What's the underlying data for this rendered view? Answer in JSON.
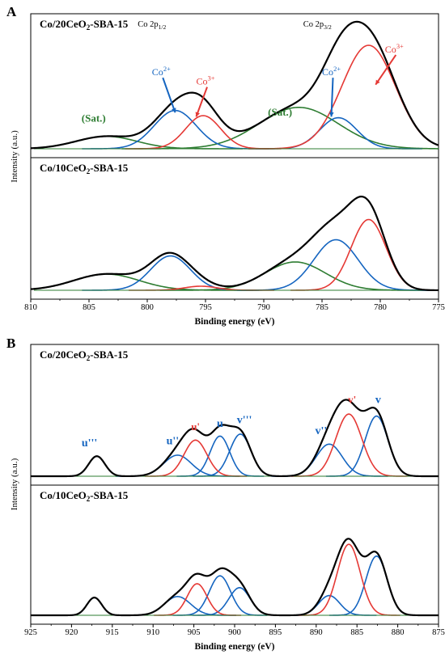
{
  "chart_data": [
    {
      "type": "line",
      "panel_label": "A",
      "xlabel": "Binding energy (eV)",
      "ylabel": "Intensity (a.u.)",
      "xlim": [
        810,
        775
      ],
      "x_ticks": [
        810,
        805,
        800,
        795,
        790,
        785,
        780,
        775
      ],
      "x_reversed": true,
      "subplots": [
        {
          "title": "Co/20CeO2-SBA-15",
          "title_parts": [
            {
              "t": "Co/20CeO",
              "sub": false
            },
            {
              "t": "2",
              "sub": true
            },
            {
              "t": "-SBA-15",
              "sub": false
            }
          ],
          "components": [
            {
              "color": "#2e7d32",
              "peaks": [
                [
                  803.5,
                  0.12,
                  2.6
                ],
                [
                  787.0,
                  0.4,
                  3.4
                ]
              ]
            },
            {
              "color": "#1565c0",
              "peaks": [
                [
                  797.6,
                  0.37,
                  1.8
                ],
                [
                  783.6,
                  0.3,
                  1.6
                ]
              ]
            },
            {
              "color": "#e53935",
              "peaks": [
                [
                  795.2,
                  0.32,
                  1.5
                ],
                [
                  781.0,
                  1.0,
                  2.3
                ]
              ]
            }
          ],
          "annotations": [
            {
              "label": "(Sat.)",
              "kind": "sat",
              "x": 804.6,
              "y": 0.26
            },
            {
              "label": "Co",
              "sup": "2+",
              "kind": "co2",
              "x": 798.8,
              "y": 0.71,
              "arrow_to": [
                797.6,
                0.35
              ]
            },
            {
              "label": "Co",
              "sup": "3+",
              "kind": "co3",
              "x": 795.0,
              "y": 0.62,
              "arrow_to": [
                795.8,
                0.31
              ]
            },
            {
              "label": "(Sat.)",
              "kind": "sat",
              "x": 788.6,
              "y": 0.32
            },
            {
              "label": "Co",
              "sup": "2+",
              "kind": "co2",
              "x": 784.2,
              "y": 0.71,
              "arrow_to": [
                784.2,
                0.31
              ]
            },
            {
              "label": "Co",
              "sup": "3+",
              "kind": "co3",
              "x": 778.8,
              "y": 0.93,
              "arrow_to": [
                780.4,
                0.62
              ]
            },
            {
              "label": "Co 2p",
              "sub": "1/2",
              "kind": "orbit",
              "x": 799.6,
              "y": 1.18
            },
            {
              "label": "Co 2p",
              "sub": "3/2",
              "kind": "orbit",
              "x": 785.4,
              "y": 1.18
            }
          ]
        },
        {
          "title": "Co/10CeO2-SBA-15",
          "title_parts": [
            {
              "t": "Co/10CeO",
              "sub": false
            },
            {
              "t": "2",
              "sub": true
            },
            {
              "t": "-SBA-15",
              "sub": false
            }
          ],
          "components": [
            {
              "color": "#2e7d32",
              "peaks": [
                [
                  803.5,
                  0.16,
                  2.8
                ],
                [
                  787.3,
                  0.28,
                  2.6
                ]
              ]
            },
            {
              "color": "#1565c0",
              "peaks": [
                [
                  798.0,
                  0.34,
                  1.7
                ],
                [
                  783.8,
                  0.5,
                  1.9
                ]
              ]
            },
            {
              "color": "#e53935",
              "peaks": [
                [
                  795.4,
                  0.04,
                  1.4
                ],
                [
                  781.0,
                  0.7,
                  1.5
                ]
              ]
            }
          ],
          "annotations": []
        }
      ]
    },
    {
      "type": "line",
      "panel_label": "B",
      "xlabel": "Binding energy (eV)",
      "ylabel": "Intensity (a.u.)",
      "xlim": [
        925,
        875
      ],
      "x_ticks": [
        925,
        920,
        915,
        910,
        905,
        900,
        895,
        890,
        885,
        880,
        875
      ],
      "x_reversed": true,
      "subplots": [
        {
          "title": "Co/20CeO2-SBA-15",
          "title_parts": [
            {
              "t": "Co/20CeO",
              "sub": false
            },
            {
              "t": "2",
              "sub": true
            },
            {
              "t": "-SBA-15",
              "sub": false
            }
          ],
          "components": [
            {
              "color": "#1565c0",
              "peaks": [
                [
                  916.9,
                  0.2,
                  1.0
                ],
                [
                  907.0,
                  0.21,
                  1.7
                ],
                [
                  901.8,
                  0.4,
                  1.2
                ],
                [
                  899.3,
                  0.42,
                  1.3
                ],
                [
                  888.4,
                  0.32,
                  1.6
                ],
                [
                  882.6,
                  0.6,
                  1.4
                ]
              ]
            },
            {
              "color": "#e53935",
              "peaks": [
                [
                  904.8,
                  0.36,
                  1.4
                ],
                [
                  886.0,
                  0.62,
                  1.6
                ]
              ]
            }
          ],
          "annotations": [
            {
              "label": "u'''",
              "kind": "ce_blue",
              "x": 917.8,
              "y": 0.3
            },
            {
              "label": "u''",
              "kind": "ce_blue",
              "x": 907.6,
              "y": 0.32
            },
            {
              "label": "u'",
              "kind": "ce_red",
              "x": 904.8,
              "y": 0.46
            },
            {
              "label": "u",
              "kind": "ce_blue",
              "x": 901.8,
              "y": 0.49
            },
            {
              "label": "v'''",
              "kind": "ce_blue",
              "x": 898.8,
              "y": 0.53
            },
            {
              "label": "v''",
              "kind": "ce_blue",
              "x": 889.4,
              "y": 0.42
            },
            {
              "label": "v'",
              "kind": "ce_red",
              "x": 885.6,
              "y": 0.73
            },
            {
              "label": "v",
              "kind": "ce_blue",
              "x": 882.4,
              "y": 0.73
            }
          ]
        },
        {
          "title": "Co/10CeO2-SBA-15",
          "title_parts": [
            {
              "t": "Co/10CeO",
              "sub": false
            },
            {
              "t": "2",
              "sub": true
            },
            {
              "t": "-SBA-15",
              "sub": false
            }
          ],
          "components": [
            {
              "color": "#1565c0",
              "peaks": [
                [
                  917.2,
                  0.18,
                  0.9
                ],
                [
                  907.0,
                  0.19,
                  1.6
                ],
                [
                  901.8,
                  0.4,
                  1.3
                ],
                [
                  899.4,
                  0.28,
                  1.3
                ],
                [
                  888.4,
                  0.2,
                  1.3
                ],
                [
                  882.6,
                  0.6,
                  1.3
                ]
              ]
            },
            {
              "color": "#e53935",
              "peaks": [
                [
                  904.6,
                  0.32,
                  1.2
                ],
                [
                  886.0,
                  0.72,
                  1.4
                ]
              ]
            }
          ],
          "annotations": []
        }
      ]
    }
  ]
}
